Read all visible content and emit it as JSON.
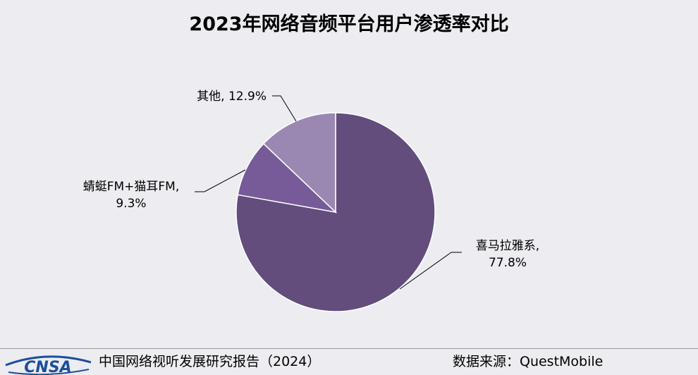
{
  "chart_data": {
    "type": "pie",
    "title": "2023年网络音频平台用户渗透率对比",
    "slices": [
      {
        "label": "喜马拉雅系",
        "value": 77.8,
        "display": "77.8%",
        "color": "#624d7d"
      },
      {
        "label": "蜻蜓FM+猫耳FM",
        "value": 9.3,
        "display": "9.3%",
        "color": "#765b98"
      },
      {
        "label": "其他",
        "value": 12.9,
        "display": "12.9%",
        "color": "#9a88b2"
      }
    ]
  },
  "footer": {
    "logo_text": "CNSA",
    "report": "中国网络视听发展研究报告（2024）",
    "source": "数据来源：QuestMobile"
  }
}
